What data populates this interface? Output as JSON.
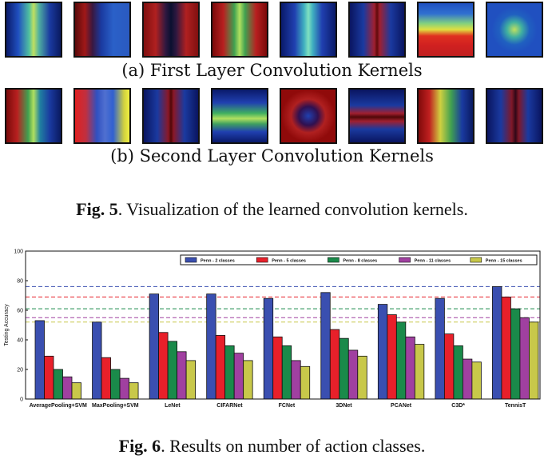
{
  "fig5": {
    "caption_a": "(a) First Layer Convolution Kernels",
    "caption_b": "(b) Second Layer Convolution Kernels",
    "label": "Fig. 5",
    "text": ". Visualization of the learned convolution kernels."
  },
  "fig6": {
    "label": "Fig. 6",
    "text": ". Results on number of action classes."
  },
  "chart_data": {
    "type": "bar",
    "ylabel": "Testing Accuracy",
    "ylim": [
      0,
      100
    ],
    "yticks": [
      "0",
      "20",
      "40",
      "60",
      "80",
      "100"
    ],
    "categories": [
      "AveragePooling+SVM",
      "MaxPooling+SVM",
      "LeNet",
      "CIFARNet",
      "FCNet",
      "3DNet",
      "PCANet",
      "C3D*",
      "TennisT"
    ],
    "series": [
      {
        "name": "Penn - 2 classes",
        "color": "#3a4fb0",
        "values": [
          53,
          52,
          71,
          71,
          68,
          72,
          64,
          68,
          76
        ]
      },
      {
        "name": "Penn - 5 classes",
        "color": "#e8202a",
        "values": [
          29,
          28,
          45,
          43,
          42,
          47,
          57,
          44,
          69
        ]
      },
      {
        "name": "Penn - 8 classes",
        "color": "#1a8a4a",
        "values": [
          20,
          20,
          39,
          36,
          36,
          41,
          52,
          36,
          61
        ]
      },
      {
        "name": "Penn - 11 classes",
        "color": "#a040a0",
        "values": [
          15,
          14,
          32,
          31,
          26,
          33,
          42,
          27,
          55
        ]
      },
      {
        "name": "Penn - 15 classes",
        "color": "#c8c84a",
        "values": [
          11,
          11,
          26,
          26,
          22,
          29,
          37,
          25,
          52
        ]
      }
    ],
    "reference_lines": [
      76,
      69,
      61,
      55,
      52
    ],
    "grid": false,
    "legend": "top"
  }
}
